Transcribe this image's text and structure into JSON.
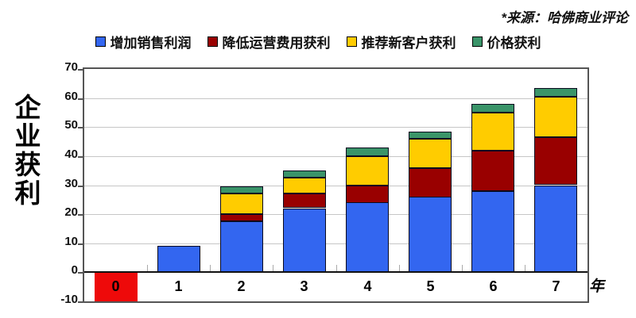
{
  "source_note": "*来源：哈佛商业评论",
  "x_axis_unit": "年",
  "chart_data": {
    "type": "bar",
    "stacked": true,
    "title": "",
    "xlabel": "年",
    "ylabel": "企业获利",
    "x": [
      0,
      1,
      2,
      3,
      4,
      5,
      6,
      7
    ],
    "ylim": [
      -10,
      70
    ],
    "ytick_step": 10,
    "grid": "horizontal",
    "legend_position": "top",
    "series": [
      {
        "name": "增加销售利润",
        "color": "#3366F0",
        "values": [
          0,
          9,
          17.5,
          22,
          24,
          26,
          28,
          30
        ]
      },
      {
        "name": "降低运营费用获利",
        "color": "#990000",
        "values": [
          0,
          0,
          2.5,
          5,
          6,
          10,
          14,
          16.5
        ]
      },
      {
        "name": "推荐新客户获利",
        "color": "#FFCC00",
        "values": [
          0,
          0,
          7,
          5.5,
          10,
          10,
          13,
          14
        ]
      },
      {
        "name": "价格获利",
        "color": "#3A9469",
        "values": [
          0,
          0,
          2.5,
          2.5,
          3,
          2.5,
          3,
          3
        ]
      }
    ],
    "totals": [
      -10,
      9,
      29.5,
      35,
      43,
      48.5,
      58,
      63.5
    ],
    "acquisition_bar": {
      "x": 0,
      "from": 0,
      "to": -10,
      "color": "#EE0A0A"
    }
  }
}
